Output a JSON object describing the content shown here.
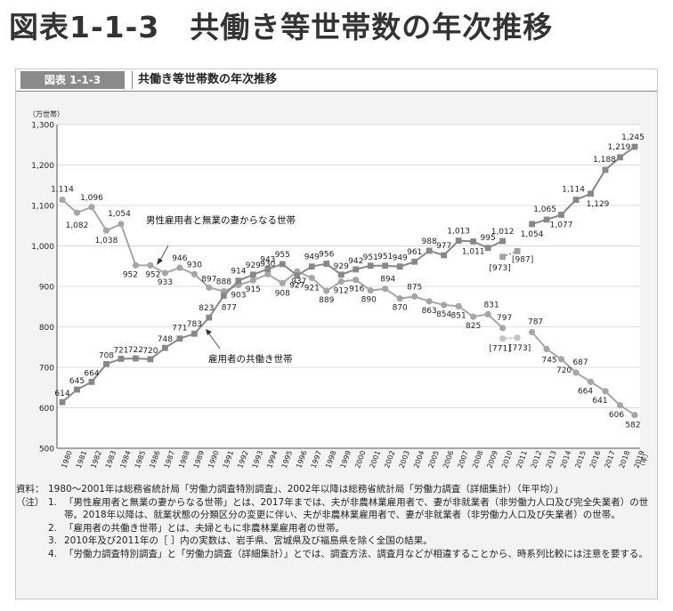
{
  "page_title": "図表1-1-3　共働き等世帯数の年次推移",
  "figure_tab": "図表 1-1-3",
  "figure_title": "共働き等世帯数の年次推移",
  "notes": {
    "source_label": "資料：",
    "source_text": "1980～2001年は総務省統計局「労働力調査特別調査」、2002年以降は総務省統計局「労働力調査（詳細集計）（年平均）」",
    "note_label": "（注）",
    "items": [
      {
        "num": "1.",
        "text": "「男性雇用者と無業の妻からなる世帯」とは、2017年までは、夫が非農林業雇用者で、妻が非就業者（非労働力人口及び完全失業者）の世帯。2018年以降は、就業状態の分類区分の変更に伴い、夫が非農林業雇用者で、妻が非就業者（非労働力人口及び失業者）の世帯。"
      },
      {
        "num": "2.",
        "text": "「雇用者の共働き世帯」とは、夫婦ともに非農林業雇用者の世帯。"
      },
      {
        "num": "3.",
        "text": "2010年及び2011年の［ ］内の実数は、岩手県、宮城県及び福島県を除く全国の結果。"
      },
      {
        "num": "4.",
        "text": "「労働力調査特別調査」と「労働力調査（詳細集計）」とでは、調査方法、調査月などが相違することから、時系列比較には注意を要する。"
      }
    ]
  },
  "chart_data": {
    "type": "line",
    "ylabel": "（万世帯）",
    "xlabel": "（年）",
    "ylim": [
      500,
      1300
    ],
    "yticks": [
      500,
      600,
      700,
      800,
      900,
      1000,
      1100,
      1200,
      1300
    ],
    "ytick_labels": [
      "500",
      "600",
      "700",
      "800",
      "900",
      "1,000",
      "1,100",
      "1,200",
      "1,300"
    ],
    "categories": [
      "1980",
      "1981",
      "1982",
      "1983",
      "1984",
      "1985",
      "1986",
      "1987",
      "1988",
      "1989",
      "1990",
      "1991",
      "1992",
      "1993",
      "1994",
      "1995",
      "1996",
      "1997",
      "1998",
      "1999",
      "2000",
      "2001",
      "2002",
      "2003",
      "2004",
      "2005",
      "2006",
      "2007",
      "2008",
      "2009",
      "2010",
      "2011",
      "2012",
      "2013",
      "2014",
      "2015",
      "2016",
      "2017",
      "2018",
      "2019"
    ],
    "series": [
      {
        "name": "男性雇用者と無業の妻からなる世帯",
        "marker": "circle",
        "color": "#a6a6a6",
        "values": [
          1114,
          1082,
          1096,
          1038,
          1054,
          952,
          952,
          933,
          946,
          930,
          897,
          888,
          903,
          915,
          930,
          908,
          937,
          921,
          889,
          912,
          916,
          890,
          894,
          870,
          875,
          863,
          854,
          851,
          825,
          831,
          797,
          null,
          787,
          745,
          720,
          687,
          664,
          641,
          606,
          582
        ],
        "labels": [
          "1,114",
          "1,082",
          "1,096",
          "1,038",
          "1,054",
          "952",
          "952",
          "933",
          "946",
          "930",
          "897",
          "888",
          "903",
          "915",
          "930",
          "908",
          "937",
          "921",
          "889",
          "912",
          "916",
          "890",
          "894",
          "870",
          "875",
          "863",
          "854",
          "851",
          "825",
          "831",
          "797",
          "",
          "787",
          "745",
          "720",
          "687",
          "664",
          "641",
          "606",
          "582"
        ],
        "bracket": [
          {
            "x": "2010",
            "value": 771,
            "label": "[771]"
          },
          {
            "x": "2011",
            "value": 773,
            "label": "[773]"
          }
        ]
      },
      {
        "name": "雇用者の共働き世帯",
        "marker": "square",
        "color": "#888888",
        "values": [
          614,
          645,
          664,
          708,
          721,
          722,
          720,
          748,
          771,
          783,
          823,
          877,
          914,
          929,
          943,
          955,
          927,
          949,
          956,
          929,
          942,
          951,
          951,
          949,
          961,
          988,
          977,
          1013,
          1011,
          995,
          1012,
          null,
          1054,
          1065,
          1077,
          1114,
          1129,
          1188,
          1219,
          1245
        ],
        "labels": [
          "614",
          "645",
          "664",
          "708",
          "721",
          "722",
          "720",
          "748",
          "771",
          "783",
          "823",
          "877",
          "914",
          "929",
          "943",
          "955",
          "927",
          "949",
          "956",
          "929",
          "942",
          "951",
          "951",
          "949",
          "961",
          "988",
          "977",
          "1,013",
          "1,011",
          "995",
          "1,012",
          "",
          "1,054",
          "1,065",
          "1,077",
          "1,114",
          "1,129",
          "1,188",
          "1,219",
          "1,245"
        ],
        "bracket": [
          {
            "x": "2010",
            "value": 973,
            "label": "[973]"
          },
          {
            "x": "2011",
            "value": 987,
            "label": "[987]"
          }
        ]
      }
    ]
  }
}
